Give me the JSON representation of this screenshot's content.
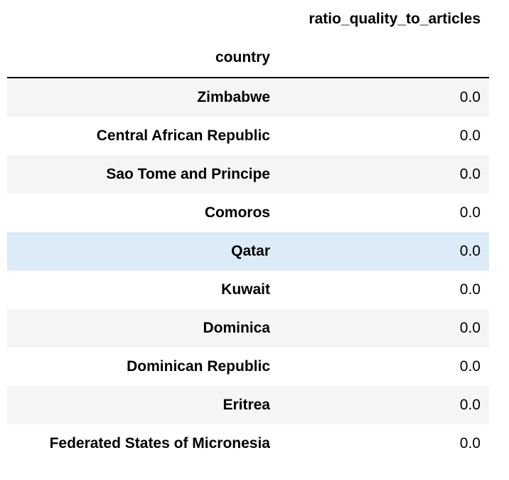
{
  "table": {
    "value_column_header": "ratio_quality_to_articles",
    "index_name": "country",
    "rows": [
      {
        "country": "Zimbabwe",
        "value": "0.0"
      },
      {
        "country": "Central African Republic",
        "value": "0.0"
      },
      {
        "country": "Sao Tome and Principe",
        "value": "0.0"
      },
      {
        "country": "Comoros",
        "value": "0.0"
      },
      {
        "country": "Qatar",
        "value": "0.0"
      },
      {
        "country": "Kuwait",
        "value": "0.0"
      },
      {
        "country": "Dominica",
        "value": "0.0"
      },
      {
        "country": "Dominican Republic",
        "value": "0.0"
      },
      {
        "country": "Eritrea",
        "value": "0.0"
      },
      {
        "country": "Federated States of Micronesia",
        "value": "0.0"
      }
    ]
  },
  "colors": {
    "stripe": "#f5f5f5",
    "hover_highlight": "#dcebf8",
    "header_rule": "#000000"
  }
}
